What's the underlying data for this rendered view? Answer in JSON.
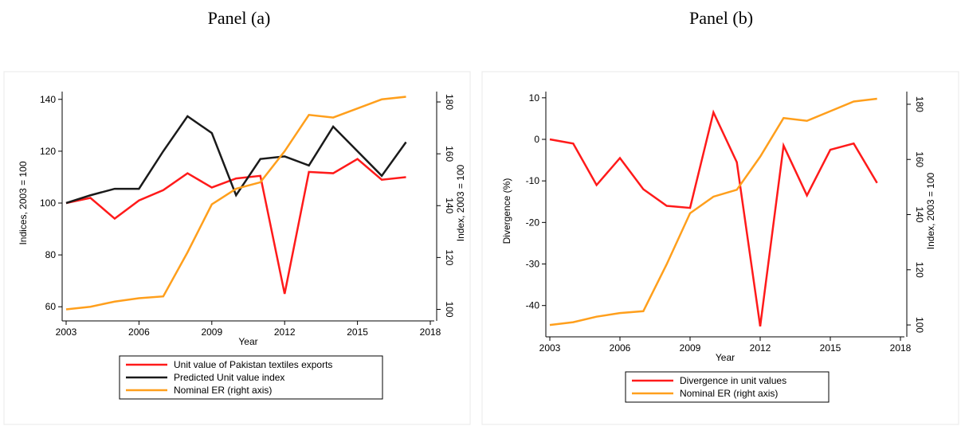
{
  "chart_data": [
    {
      "type": "line",
      "title": "Panel (a)",
      "x_label": "Year",
      "y_label": "Indices, 2003 = 100",
      "y2_label": "Index, 2003 = 100",
      "x": [
        2003,
        2004,
        2005,
        2006,
        2007,
        2008,
        2009,
        2010,
        2011,
        2012,
        2013,
        2014,
        2015,
        2016,
        2017
      ],
      "xlim": [
        2003,
        2018
      ],
      "xticks": [
        2003,
        2006,
        2009,
        2012,
        2015,
        2018
      ],
      "ylim": [
        57,
        143
      ],
      "yticks": [
        60,
        80,
        100,
        120,
        140
      ],
      "y2lim": [
        98,
        184
      ],
      "y2ticks": [
        100,
        120,
        140,
        160,
        180
      ],
      "series": [
        {
          "name": "Unit value of Pakistan textiles exports",
          "color": "#ff1a1a",
          "values": [
            100,
            102,
            94,
            101,
            105,
            111.5,
            106,
            109.5,
            110.5,
            65,
            112,
            111.5,
            117,
            109,
            110
          ]
        },
        {
          "name": "Predicted Unit value index",
          "color": "#1a1a1a",
          "values": [
            100,
            103,
            105.5,
            105.5,
            120,
            133.5,
            127,
            103,
            117,
            118,
            114.5,
            129.5,
            120,
            110.5,
            123.5
          ]
        },
        {
          "name": "Nominal ER (right axis)",
          "color": "#ff9f1c",
          "axis": "y2",
          "values": [
            100,
            101,
            103,
            104.3,
            105,
            122,
            140.5,
            146.5,
            149,
            161,
            175,
            174,
            177.5,
            181,
            182
          ]
        }
      ]
    },
    {
      "type": "line",
      "title": "Panel (b)",
      "x_label": "Year",
      "y_label": "Divergence (%)",
      "y2_label": "Index, 2003 = 100",
      "x": [
        2003,
        2004,
        2005,
        2006,
        2007,
        2008,
        2009,
        2010,
        2011,
        2012,
        2013,
        2014,
        2015,
        2016,
        2017
      ],
      "xlim": [
        2003,
        2018
      ],
      "xticks": [
        2003,
        2006,
        2009,
        2012,
        2015,
        2018
      ],
      "ylim": [
        -46,
        11.5
      ],
      "yticks": [
        -40,
        -30,
        -20,
        -10,
        0,
        10
      ],
      "y2lim": [
        98,
        184.6
      ],
      "y2ticks": [
        100,
        120,
        140,
        160,
        180
      ],
      "series": [
        {
          "name": "Divergence in unit values",
          "color": "#ff1a1a",
          "values": [
            0,
            -1,
            -11,
            -4.5,
            -12,
            -16,
            -16.5,
            6.5,
            -5.5,
            -45,
            -1.5,
            -13.5,
            -2.5,
            -1,
            -10.5
          ]
        },
        {
          "name": "Nominal ER (right axis)",
          "color": "#ff9f1c",
          "axis": "y2",
          "values": [
            100,
            101,
            103,
            104.3,
            105,
            122,
            140.5,
            146.5,
            149,
            161,
            175,
            174,
            177.5,
            181,
            182
          ]
        }
      ]
    }
  ]
}
